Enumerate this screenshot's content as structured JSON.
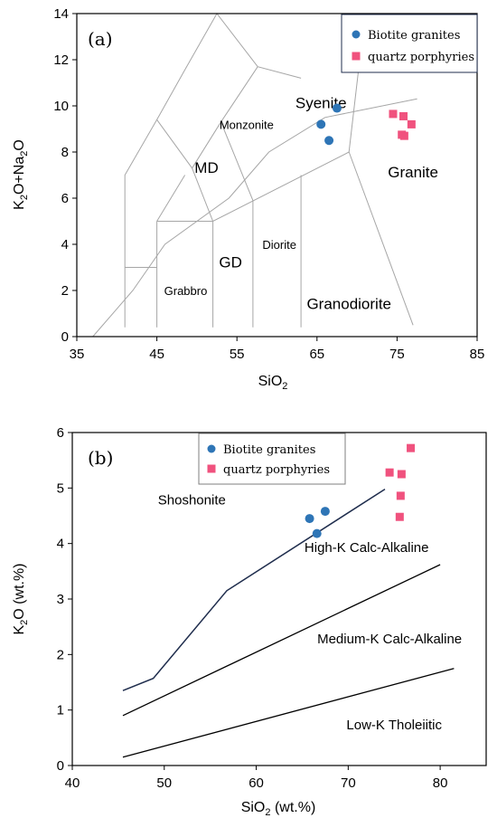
{
  "colors": {
    "biotite": "#2e75b6",
    "porphyry": "#f0527e",
    "field_line": "#a6a6a6",
    "boundary_navy": "#1f2d4d"
  },
  "chart_data": [
    {
      "type": "scatter",
      "panel_label": "(a)",
      "xlabel": "SiO",
      "xlabel_sub": "2",
      "ylabel_parts": [
        "K",
        "2",
        "O+Na",
        "2",
        "O"
      ],
      "xlim": [
        35,
        85
      ],
      "ylim": [
        0,
        14
      ],
      "xticks": [
        35,
        45,
        55,
        65,
        75,
        85
      ],
      "yticks": [
        0,
        2,
        4,
        6,
        8,
        10,
        12,
        14
      ],
      "legend_placement": "top-right",
      "series": [
        {
          "name": "Biotite granites",
          "marker": "circle",
          "points": [
            [
              67.5,
              9.9
            ],
            [
              65.5,
              9.2
            ],
            [
              66.5,
              8.5
            ]
          ]
        },
        {
          "name": "quartz porphyries",
          "marker": "square",
          "points": [
            [
              74.5,
              9.65
            ],
            [
              75.8,
              9.55
            ],
            [
              76.8,
              9.2
            ],
            [
              75.6,
              8.75
            ],
            [
              75.9,
              8.7
            ]
          ]
        }
      ],
      "fields": [
        {
          "label": "Syenite",
          "x": 65.5,
          "y": 9.9,
          "size": "large"
        },
        {
          "label": "Monzonite",
          "x": 56.2,
          "y": 9.0,
          "size": "small"
        },
        {
          "label": "MD",
          "x": 51.2,
          "y": 7.1,
          "size": "large"
        },
        {
          "label": "Granite",
          "x": 77.0,
          "y": 6.9,
          "size": "large"
        },
        {
          "label": "Diorite",
          "x": 60.3,
          "y": 3.8,
          "size": "small"
        },
        {
          "label": "GD",
          "x": 54.2,
          "y": 3.0,
          "size": "large"
        },
        {
          "label": "Grabbro",
          "x": 48.6,
          "y": 1.8,
          "size": "small"
        },
        {
          "label": "Granodiorite",
          "x": 69.0,
          "y": 1.2,
          "size": "large"
        }
      ],
      "boundaries": [
        [
          [
            37,
            0
          ],
          [
            42,
            2
          ],
          [
            46,
            4
          ],
          [
            54,
            6
          ],
          [
            59,
            8
          ],
          [
            66,
            9.5
          ],
          [
            77.5,
            10.3
          ]
        ],
        [
          [
            45,
            5
          ],
          [
            52,
            5
          ],
          [
            69,
            8
          ]
        ],
        [
          [
            69,
            8
          ],
          [
            77,
            0.5
          ]
        ],
        [
          [
            69,
            8
          ],
          [
            71,
            14
          ]
        ],
        [
          [
            63,
            0.4
          ],
          [
            63,
            7
          ]
        ],
        [
          [
            57,
            0.4
          ],
          [
            57,
            5.9
          ]
        ],
        [
          [
            52,
            0.4
          ],
          [
            52,
            5
          ]
        ],
        [
          [
            45,
            0.4
          ],
          [
            45,
            5
          ]
        ],
        [
          [
            41,
            0.4
          ],
          [
            41,
            7
          ],
          [
            45,
            9.4
          ],
          [
            49.4,
            7.3
          ],
          [
            53,
            9.3
          ],
          [
            57.6,
            11.7
          ]
        ],
        [
          [
            45,
            5
          ],
          [
            48.5,
            7.0
          ]
        ],
        [
          [
            52,
            5
          ],
          [
            49.4,
            7.3
          ]
        ],
        [
          [
            57,
            5.9
          ],
          [
            53,
            9.3
          ]
        ],
        [
          [
            45,
            9.4
          ],
          [
            48.4,
            11.5
          ],
          [
            52.5,
            14
          ],
          [
            57.6,
            11.7
          ],
          [
            63,
            11.2
          ]
        ],
        [
          [
            41,
            3
          ],
          [
            45,
            3
          ]
        ]
      ]
    },
    {
      "type": "scatter",
      "panel_label": "(b)",
      "xlabel": "SiO",
      "xlabel_sub": "2",
      "xlabel_suffix": " (wt.%)",
      "ylabel_parts": [
        "K",
        "2",
        "O (wt.%)"
      ],
      "xlim": [
        40,
        85
      ],
      "ylim": [
        0,
        6
      ],
      "xticks": [
        40,
        50,
        60,
        70,
        80
      ],
      "yticks": [
        0,
        1,
        2,
        3,
        4,
        5,
        6
      ],
      "legend_placement": "top-center",
      "series": [
        {
          "name": "Biotite granites",
          "marker": "circle",
          "points": [
            [
              65.8,
              4.45
            ],
            [
              67.5,
              4.58
            ],
            [
              66.6,
              4.18
            ]
          ]
        },
        {
          "name": "quartz porphyries",
          "marker": "square",
          "points": [
            [
              76.8,
              5.72
            ],
            [
              74.5,
              5.28
            ],
            [
              75.8,
              5.25
            ],
            [
              75.7,
              4.86
            ],
            [
              75.6,
              4.48
            ]
          ]
        }
      ],
      "fields": [
        {
          "label": "Shoshonite",
          "x": 53.0,
          "y": 4.7
        },
        {
          "label": "High-K Calc-Alkaline",
          "x": 72.0,
          "y": 3.85
        },
        {
          "label": "Medium-K Calc-Alkaline",
          "x": 74.5,
          "y": 2.2
        },
        {
          "label": "Low-K Tholeiitic",
          "x": 75.0,
          "y": 0.65
        }
      ],
      "boundaries": [
        {
          "style": "navy",
          "points": [
            [
              45.5,
              1.35
            ],
            [
              48.8,
              1.57
            ],
            [
              56.8,
              3.15
            ],
            [
              74,
              4.98
            ]
          ]
        },
        {
          "style": "black",
          "points": [
            [
              45.5,
              0.9
            ],
            [
              80,
              3.62
            ]
          ]
        },
        {
          "style": "black",
          "points": [
            [
              45.5,
              0.15
            ],
            [
              81.5,
              1.75
            ]
          ]
        }
      ]
    }
  ]
}
